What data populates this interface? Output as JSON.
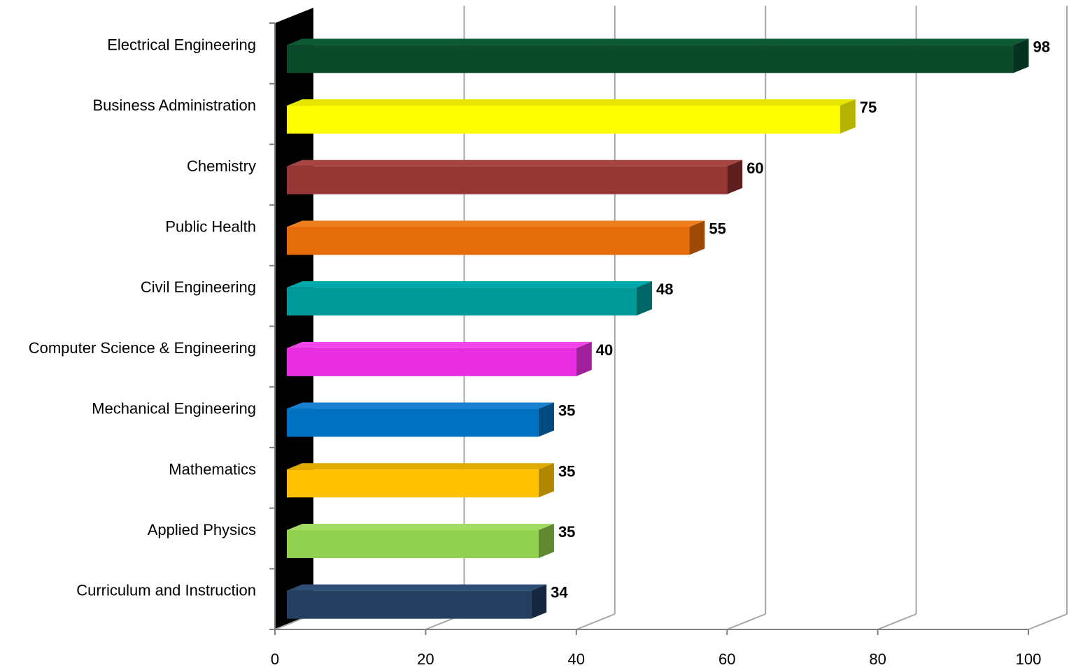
{
  "chart_data": {
    "type": "bar",
    "orientation": "horizontal",
    "style": "3d",
    "categories": [
      "Electrical Engineering",
      "Business Administration",
      "Chemistry",
      "Public Health",
      "Civil Engineering",
      "Computer Science & Engineering",
      "Mechanical Engineering",
      "Mathematics",
      "Applied Physics",
      "Curriculum and Instruction"
    ],
    "values": [
      98,
      75,
      60,
      55,
      48,
      40,
      35,
      35,
      35,
      34
    ],
    "data_labels": [
      "98",
      "75",
      "60",
      "55",
      "48",
      "40",
      "35",
      "35",
      "35",
      "34"
    ],
    "colors": [
      "#0b4a2b",
      "#ffff00",
      "#953735",
      "#e46c0a",
      "#009999",
      "#e82ee0",
      "#0070c0",
      "#ffc000",
      "#92d050",
      "#243f60"
    ],
    "side_colors": [
      "#063320",
      "#b3b300",
      "#5e1f1e",
      "#9c4a06",
      "#006666",
      "#a01f9a",
      "#004a80",
      "#b38600",
      "#5f8a30",
      "#152840"
    ],
    "top_colors": [
      "#0e5a34",
      "#e6e600",
      "#a84442",
      "#f07d1e",
      "#00aaaa",
      "#f045ea",
      "#1a80d0",
      "#e0aa00",
      "#a2dc64",
      "#2e4e74"
    ],
    "xticks": [
      "0",
      "20",
      "40",
      "60",
      "80",
      "100"
    ],
    "xlim": [
      0,
      100
    ],
    "grid": true,
    "legend": "none",
    "title": "",
    "xlabel": "",
    "ylabel": ""
  }
}
